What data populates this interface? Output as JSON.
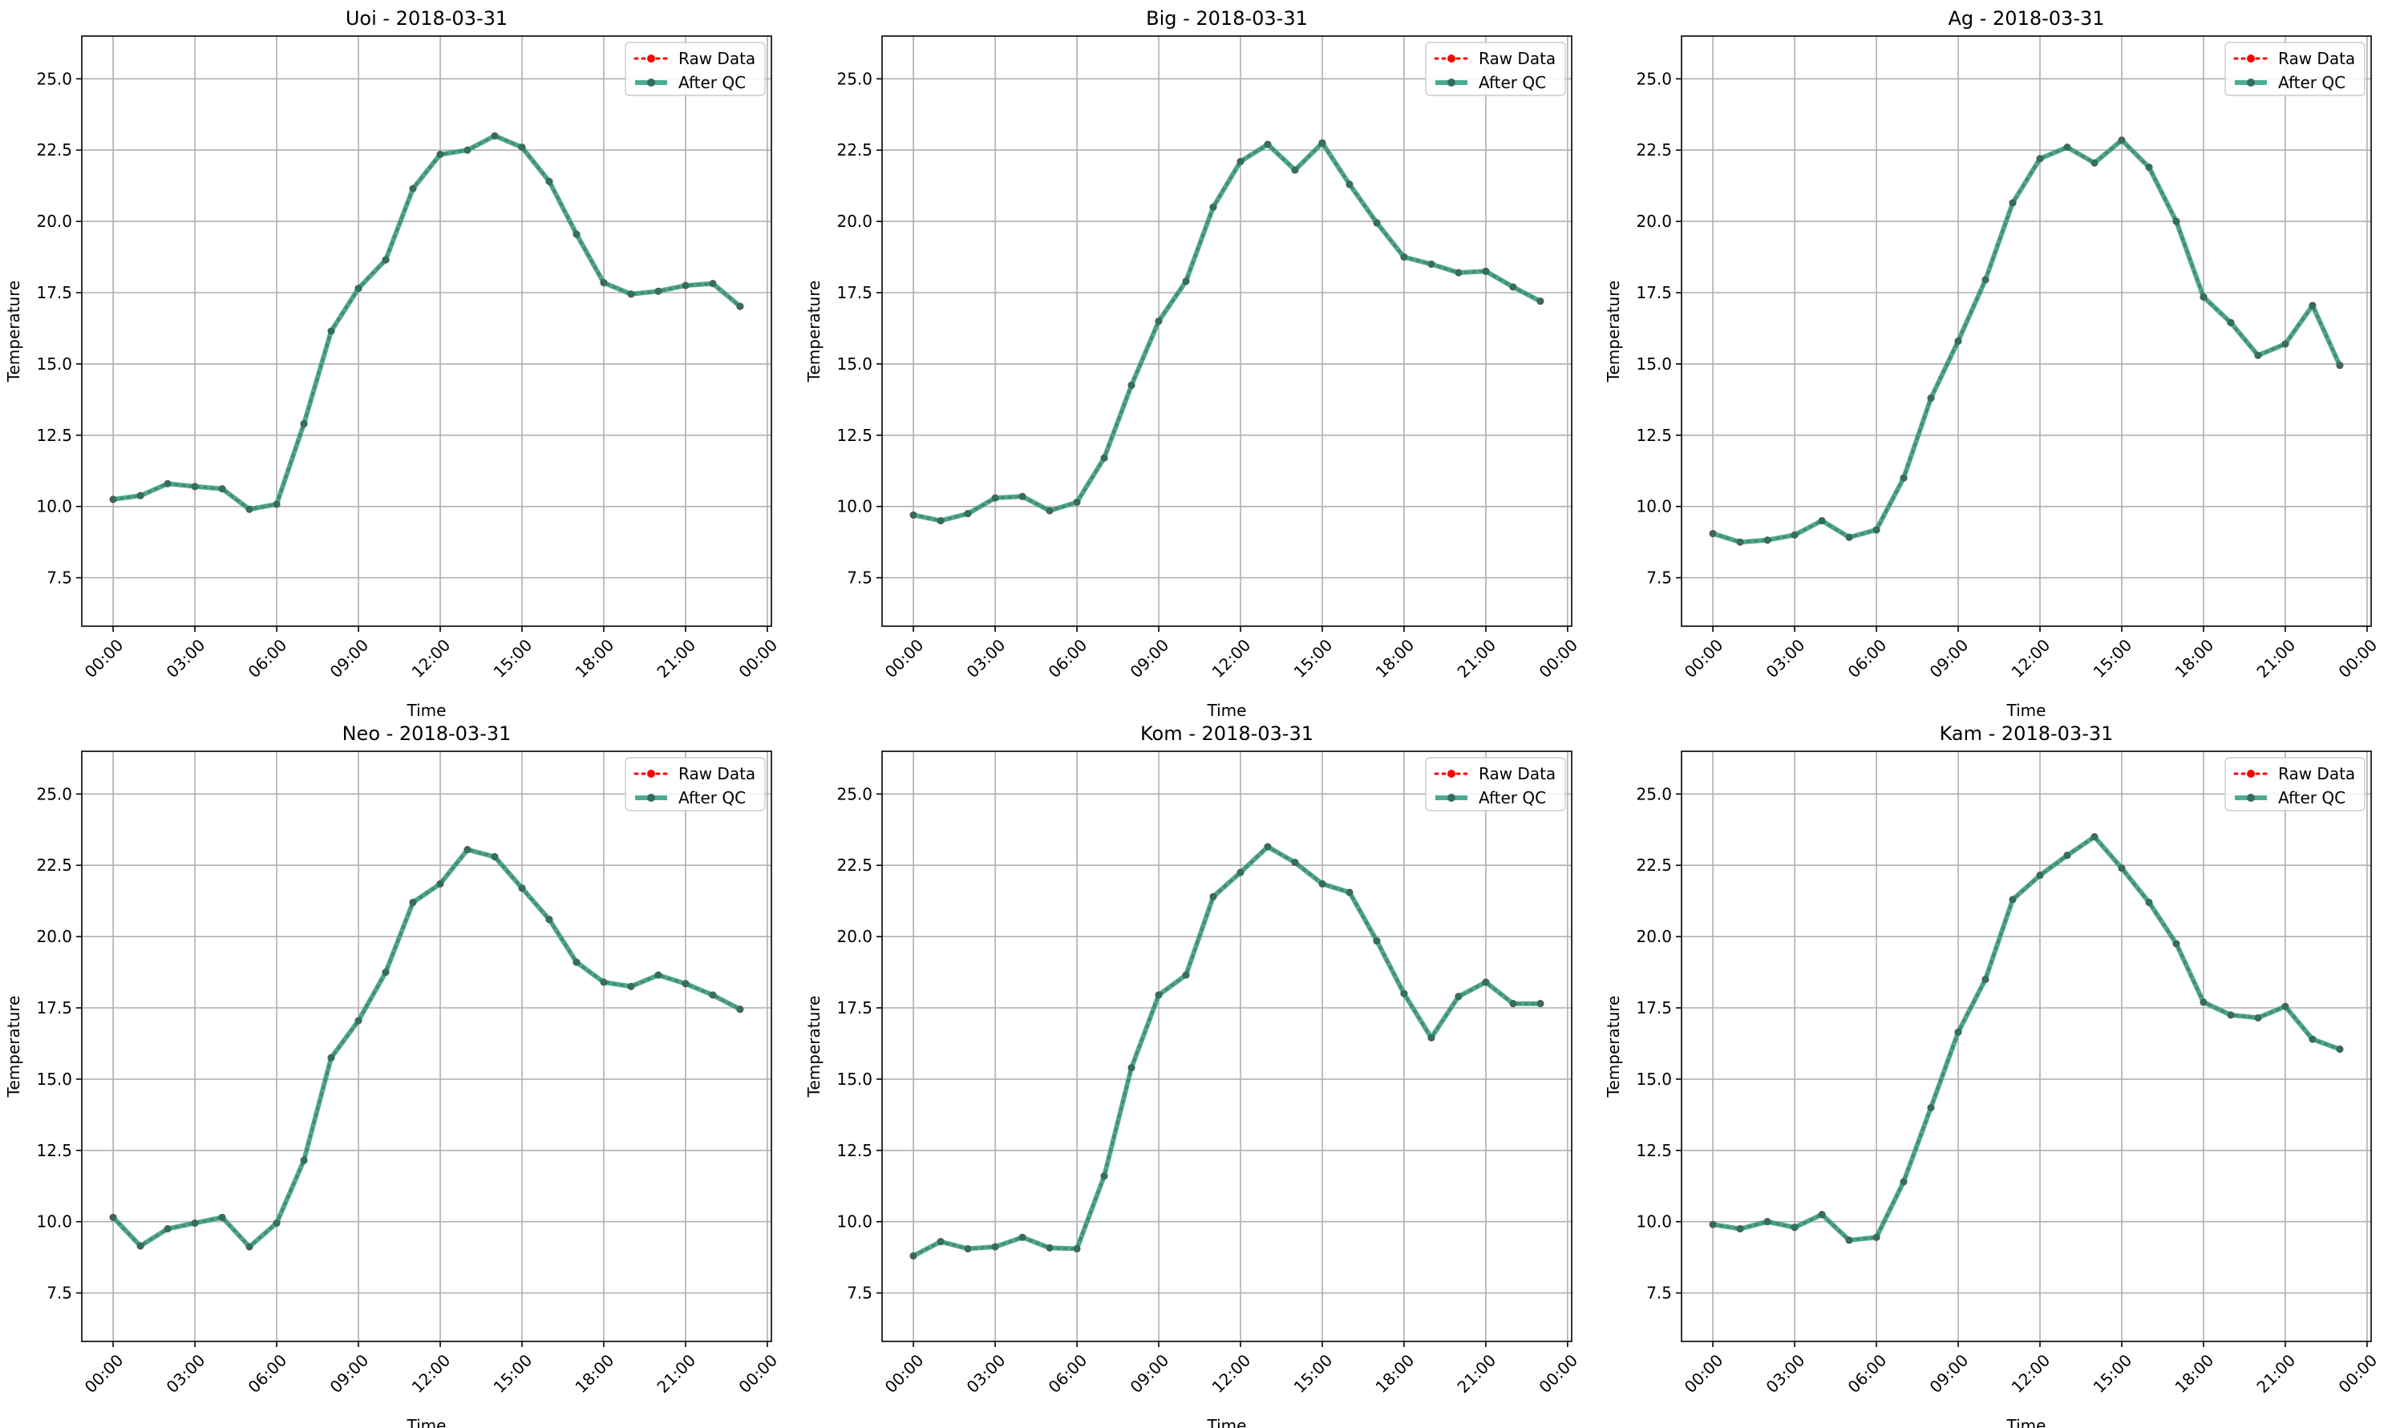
{
  "legend_labels": {
    "raw": "Raw Data",
    "qc": "After QC"
  },
  "colors": {
    "raw": "#ff0000",
    "qc": "#2e9c7e",
    "grid": "#b0b0b0",
    "axis": "#000000"
  },
  "chart_data": [
    {
      "type": "line",
      "title": "Uoi - 2018-03-31",
      "xlabel": "Time",
      "ylabel": "Temperature",
      "x_ticks": [
        "00:00",
        "03:00",
        "06:00",
        "09:00",
        "12:00",
        "15:00",
        "18:00",
        "21:00",
        "00:00"
      ],
      "y_ticks": [
        "7.5",
        "10.0",
        "12.5",
        "15.0",
        "17.5",
        "20.0",
        "22.5",
        "25.0"
      ],
      "ylim": [
        5.8,
        26.5
      ],
      "xlim": [
        -1.15,
        24.15
      ],
      "grid": true,
      "legend": "top-right",
      "x": [
        0,
        1,
        2,
        3,
        4,
        5,
        6,
        7,
        8,
        9,
        10,
        11,
        12,
        13,
        14,
        15,
        16,
        17,
        18,
        19,
        20,
        21,
        22,
        23
      ],
      "series": [
        {
          "name": "Raw Data",
          "values": [
            10.25,
            10.38,
            10.8,
            10.7,
            10.62,
            9.9,
            10.08,
            12.9,
            16.15,
            17.65,
            18.65,
            21.15,
            22.35,
            22.5,
            23.0,
            22.6,
            21.4,
            19.55,
            17.85,
            17.45,
            17.55,
            17.75,
            17.82,
            17.02
          ]
        },
        {
          "name": "After QC",
          "values": [
            10.25,
            10.38,
            10.8,
            10.7,
            10.62,
            9.9,
            10.08,
            12.9,
            16.15,
            17.65,
            18.65,
            21.15,
            22.35,
            22.5,
            23.0,
            22.6,
            21.4,
            19.55,
            17.85,
            17.45,
            17.55,
            17.75,
            17.82,
            17.02
          ]
        }
      ]
    },
    {
      "type": "line",
      "title": "Big - 2018-03-31",
      "xlabel": "Time",
      "ylabel": "Temperature",
      "x_ticks": [
        "00:00",
        "03:00",
        "06:00",
        "09:00",
        "12:00",
        "15:00",
        "18:00",
        "21:00",
        "00:00"
      ],
      "y_ticks": [
        "7.5",
        "10.0",
        "12.5",
        "15.0",
        "17.5",
        "20.0",
        "22.5",
        "25.0"
      ],
      "ylim": [
        5.8,
        26.5
      ],
      "xlim": [
        -1.15,
        24.15
      ],
      "grid": true,
      "legend": "top-right",
      "x": [
        0,
        1,
        2,
        3,
        4,
        5,
        6,
        7,
        8,
        9,
        10,
        11,
        12,
        13,
        14,
        15,
        16,
        17,
        18,
        19,
        20,
        21,
        22,
        23
      ],
      "series": [
        {
          "name": "Raw Data",
          "values": [
            9.7,
            9.5,
            9.75,
            10.3,
            10.35,
            9.85,
            10.15,
            11.7,
            14.25,
            16.5,
            17.9,
            20.5,
            22.1,
            22.7,
            21.8,
            22.75,
            21.3,
            19.95,
            18.75,
            18.5,
            18.2,
            18.25,
            17.7,
            17.2
          ]
        },
        {
          "name": "After QC",
          "values": [
            9.7,
            9.5,
            9.75,
            10.3,
            10.35,
            9.85,
            10.15,
            11.7,
            14.25,
            16.5,
            17.9,
            20.5,
            22.1,
            22.7,
            21.8,
            22.75,
            21.3,
            19.95,
            18.75,
            18.5,
            18.2,
            18.25,
            17.7,
            17.2
          ]
        }
      ]
    },
    {
      "type": "line",
      "title": "Ag - 2018-03-31",
      "xlabel": "Time",
      "ylabel": "Temperature",
      "x_ticks": [
        "00:00",
        "03:00",
        "06:00",
        "09:00",
        "12:00",
        "15:00",
        "18:00",
        "21:00",
        "00:00"
      ],
      "y_ticks": [
        "7.5",
        "10.0",
        "12.5",
        "15.0",
        "17.5",
        "20.0",
        "22.5",
        "25.0"
      ],
      "ylim": [
        5.8,
        26.5
      ],
      "xlim": [
        -1.15,
        24.15
      ],
      "grid": true,
      "legend": "top-right",
      "x": [
        0,
        1,
        2,
        3,
        4,
        5,
        6,
        7,
        8,
        9,
        10,
        11,
        12,
        13,
        14,
        15,
        16,
        17,
        18,
        19,
        20,
        21,
        22,
        23
      ],
      "series": [
        {
          "name": "Raw Data",
          "values": [
            9.05,
            8.75,
            8.82,
            9.0,
            9.5,
            8.92,
            9.18,
            11.0,
            13.8,
            15.8,
            17.95,
            20.65,
            22.2,
            22.6,
            22.05,
            22.85,
            21.9,
            20.0,
            17.35,
            16.45,
            15.3,
            15.7,
            17.05,
            14.95
          ]
        },
        {
          "name": "After QC",
          "values": [
            9.05,
            8.75,
            8.82,
            9.0,
            9.5,
            8.92,
            9.18,
            11.0,
            13.8,
            15.8,
            17.95,
            20.65,
            22.2,
            22.6,
            22.05,
            22.85,
            21.9,
            20.0,
            17.35,
            16.45,
            15.3,
            15.7,
            17.05,
            14.95
          ]
        }
      ]
    },
    {
      "type": "line",
      "title": "Neo - 2018-03-31",
      "xlabel": "Time",
      "ylabel": "Temperature",
      "x_ticks": [
        "00:00",
        "03:00",
        "06:00",
        "09:00",
        "12:00",
        "15:00",
        "18:00",
        "21:00",
        "00:00"
      ],
      "y_ticks": [
        "7.5",
        "10.0",
        "12.5",
        "15.0",
        "17.5",
        "20.0",
        "22.5",
        "25.0"
      ],
      "ylim": [
        5.8,
        26.5
      ],
      "xlim": [
        -1.15,
        24.15
      ],
      "grid": true,
      "legend": "top-right",
      "x": [
        0,
        1,
        2,
        3,
        4,
        5,
        6,
        7,
        8,
        9,
        10,
        11,
        12,
        13,
        14,
        15,
        16,
        17,
        18,
        19,
        20,
        21,
        22,
        23
      ],
      "series": [
        {
          "name": "Raw Data",
          "values": [
            10.15,
            9.15,
            9.75,
            9.95,
            10.15,
            9.12,
            9.95,
            12.15,
            15.75,
            17.05,
            18.75,
            21.2,
            21.85,
            23.05,
            22.8,
            21.7,
            20.6,
            19.1,
            18.4,
            18.25,
            18.65,
            18.35,
            17.95,
            17.45
          ]
        },
        {
          "name": "After QC",
          "values": [
            10.15,
            9.15,
            9.75,
            9.95,
            10.15,
            9.12,
            9.95,
            12.15,
            15.75,
            17.05,
            18.75,
            21.2,
            21.85,
            23.05,
            22.8,
            21.7,
            20.6,
            19.1,
            18.4,
            18.25,
            18.65,
            18.35,
            17.95,
            17.45
          ]
        }
      ]
    },
    {
      "type": "line",
      "title": "Kom - 2018-03-31",
      "xlabel": "Time",
      "ylabel": "Temperature",
      "x_ticks": [
        "00:00",
        "03:00",
        "06:00",
        "09:00",
        "12:00",
        "15:00",
        "18:00",
        "21:00",
        "00:00"
      ],
      "y_ticks": [
        "7.5",
        "10.0",
        "12.5",
        "15.0",
        "17.5",
        "20.0",
        "22.5",
        "25.0"
      ],
      "ylim": [
        5.8,
        26.5
      ],
      "xlim": [
        -1.15,
        24.15
      ],
      "grid": true,
      "legend": "top-right",
      "x": [
        0,
        1,
        2,
        3,
        4,
        5,
        6,
        7,
        8,
        9,
        10,
        11,
        12,
        13,
        14,
        15,
        16,
        17,
        18,
        19,
        20,
        21,
        22,
        23
      ],
      "series": [
        {
          "name": "Raw Data",
          "values": [
            8.8,
            9.3,
            9.05,
            9.12,
            9.45,
            9.08,
            9.05,
            11.6,
            15.4,
            17.95,
            18.65,
            21.4,
            22.25,
            23.15,
            22.6,
            21.85,
            21.55,
            19.85,
            18.0,
            16.45,
            17.9,
            18.4,
            17.65,
            17.65
          ]
        },
        {
          "name": "After QC",
          "values": [
            8.8,
            9.3,
            9.05,
            9.12,
            9.45,
            9.08,
            9.05,
            11.6,
            15.4,
            17.95,
            18.65,
            21.4,
            22.25,
            23.15,
            22.6,
            21.85,
            21.55,
            19.85,
            18.0,
            16.45,
            17.9,
            18.4,
            17.65,
            17.65
          ]
        }
      ]
    },
    {
      "type": "line",
      "title": "Kam - 2018-03-31",
      "xlabel": "Time",
      "ylabel": "Temperature",
      "x_ticks": [
        "00:00",
        "03:00",
        "06:00",
        "09:00",
        "12:00",
        "15:00",
        "18:00",
        "21:00",
        "00:00"
      ],
      "y_ticks": [
        "7.5",
        "10.0",
        "12.5",
        "15.0",
        "17.5",
        "20.0",
        "22.5",
        "25.0"
      ],
      "ylim": [
        5.8,
        26.5
      ],
      "xlim": [
        -1.15,
        24.15
      ],
      "grid": true,
      "legend": "top-right",
      "x": [
        0,
        1,
        2,
        3,
        4,
        5,
        6,
        7,
        8,
        9,
        10,
        11,
        12,
        13,
        14,
        15,
        16,
        17,
        18,
        19,
        20,
        21,
        22,
        23
      ],
      "series": [
        {
          "name": "Raw Data",
          "values": [
            9.9,
            9.75,
            10.0,
            9.8,
            10.25,
            9.35,
            9.45,
            11.4,
            14.0,
            16.65,
            18.5,
            21.3,
            22.15,
            22.85,
            23.5,
            22.4,
            21.2,
            19.75,
            17.7,
            17.25,
            17.15,
            17.55,
            16.4,
            16.05
          ]
        },
        {
          "name": "After QC",
          "values": [
            9.9,
            9.75,
            10.0,
            9.8,
            10.25,
            9.35,
            9.45,
            11.4,
            14.0,
            16.65,
            18.5,
            21.3,
            22.15,
            22.85,
            23.5,
            22.4,
            21.2,
            19.75,
            17.7,
            17.25,
            17.15,
            17.55,
            16.4,
            16.05
          ]
        }
      ]
    }
  ]
}
